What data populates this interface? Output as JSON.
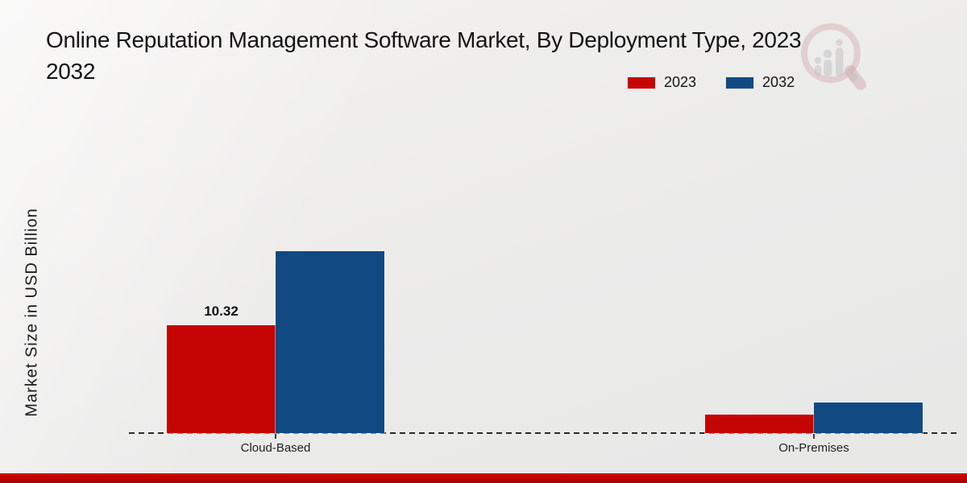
{
  "page": {
    "background_top": "#f3f2f0",
    "background_bottom": "#e7e7e6",
    "footer_bar_color": "#c00000"
  },
  "header": {
    "title_full": "Online Reputation Management Software Market, By Deployment Type, 2023 2032",
    "title_line1": "Online Reputation Management Software Market, By Deployment Type, 2023",
    "title_line2": "2032"
  },
  "watermark": {
    "icon": "magnifier-bar-chart-logo",
    "ring_color": "#b5525a",
    "figure_color": "#97979d"
  },
  "chart_data": {
    "type": "bar",
    "title": "Online Reputation Management Software Market, By Deployment Type, 2023 2032",
    "xlabel": "",
    "ylabel": "Market Size in USD Billion",
    "categories": [
      "Cloud-Based",
      "On-Premises"
    ],
    "series": [
      {
        "name": "2023",
        "color": "#c50404",
        "values": [
          10.32,
          1.8
        ]
      },
      {
        "name": "2032",
        "color": "#114a82",
        "values": [
          17.4,
          2.9
        ]
      }
    ],
    "data_labels": [
      {
        "series_index": 0,
        "category_index": 0,
        "text": "10.32"
      }
    ],
    "ylim": [
      0,
      20
    ],
    "grid": false,
    "baseline_style": "dashed",
    "legend_position": "top-right"
  }
}
